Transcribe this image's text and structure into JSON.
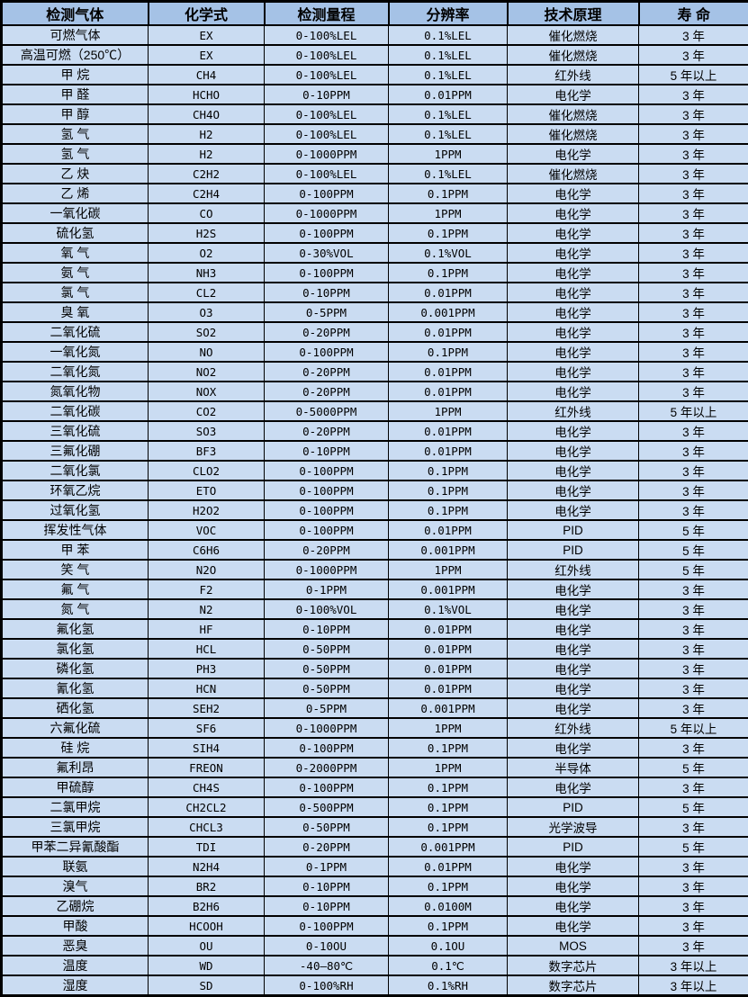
{
  "colors": {
    "header_bg": "#a5c2e6",
    "row_bg": "#cadcf2",
    "border": "#000000"
  },
  "table": {
    "headers": [
      "检测气体",
      "化学式",
      "检测量程",
      "分辨率",
      "技术原理",
      "寿 命"
    ],
    "rows": [
      [
        "可燃气体",
        "EX",
        "0-100%LEL",
        "0.1%LEL",
        "催化燃烧",
        "3 年"
      ],
      [
        "高温可燃（250℃）",
        "EX",
        "0-100%LEL",
        "0.1%LEL",
        "催化燃烧",
        "3 年"
      ],
      [
        "甲 烷",
        "CH4",
        "0-100%LEL",
        "0.1%LEL",
        "红外线",
        "5 年以上"
      ],
      [
        "甲 醛",
        "HCHO",
        "0-10PPM",
        "0.01PPM",
        "电化学",
        "3 年"
      ],
      [
        "甲 醇",
        "CH4O",
        "0-100%LEL",
        "0.1%LEL",
        "催化燃烧",
        "3 年"
      ],
      [
        "氢 气",
        "H2",
        "0-100%LEL",
        "0.1%LEL",
        "催化燃烧",
        "3 年"
      ],
      [
        "氢 气",
        "H2",
        "0-1000PPM",
        "1PPM",
        "电化学",
        "3 年"
      ],
      [
        "乙 炔",
        "C2H2",
        "0-100%LEL",
        "0.1%LEL",
        "催化燃烧",
        "3 年"
      ],
      [
        "乙 烯",
        "C2H4",
        "0-100PPM",
        "0.1PPM",
        "电化学",
        "3 年"
      ],
      [
        "一氧化碳",
        "CO",
        "0-1000PPM",
        "1PPM",
        "电化学",
        "3 年"
      ],
      [
        "硫化氢",
        "H2S",
        "0-100PPM",
        "0.1PPM",
        "电化学",
        "3 年"
      ],
      [
        "氧 气",
        "O2",
        "0-30%VOL",
        "0.1%VOL",
        "电化学",
        "3 年"
      ],
      [
        "氨 气",
        "NH3",
        "0-100PPM",
        "0.1PPM",
        "电化学",
        "3 年"
      ],
      [
        "氯 气",
        "CL2",
        "0-10PPM",
        "0.01PPM",
        "电化学",
        "3 年"
      ],
      [
        "臭 氧",
        "O3",
        "0-5PPM",
        "0.001PPM",
        "电化学",
        "3 年"
      ],
      [
        "二氧化硫",
        "SO2",
        "0-20PPM",
        "0.01PPM",
        "电化学",
        "3 年"
      ],
      [
        "一氧化氮",
        "NO",
        "0-100PPM",
        "0.1PPM",
        "电化学",
        "3 年"
      ],
      [
        "二氧化氮",
        "NO2",
        "0-20PPM",
        "0.01PPM",
        "电化学",
        "3 年"
      ],
      [
        "氮氧化物",
        "NOX",
        "0-20PPM",
        "0.01PPM",
        "电化学",
        "3 年"
      ],
      [
        "二氧化碳",
        "CO2",
        "0-5000PPM",
        "1PPM",
        "红外线",
        "5 年以上"
      ],
      [
        "三氧化硫",
        "SO3",
        "0-20PPM",
        "0.01PPM",
        "电化学",
        "3 年"
      ],
      [
        "三氟化硼",
        "BF3",
        "0-10PPM",
        "0.01PPM",
        "电化学",
        "3 年"
      ],
      [
        "二氧化氯",
        "CLO2",
        "0-100PPM",
        "0.1PPM",
        "电化学",
        "3 年"
      ],
      [
        "环氧乙烷",
        "ETO",
        "0-100PPM",
        "0.1PPM",
        "电化学",
        "3 年"
      ],
      [
        "过氧化氢",
        "H2O2",
        "0-100PPM",
        "0.1PPM",
        "电化学",
        "3 年"
      ],
      [
        "挥发性气体",
        "VOC",
        "0-100PPM",
        "0.01PPM",
        "PID",
        "5 年"
      ],
      [
        "甲 苯",
        "C6H6",
        "0-20PPM",
        "0.001PPM",
        "PID",
        "5 年"
      ],
      [
        "笑 气",
        "N2O",
        "0-1000PPM",
        "1PPM",
        "红外线",
        "5 年"
      ],
      [
        "氟 气",
        "F2",
        "0-1PPM",
        "0.001PPM",
        "电化学",
        "3 年"
      ],
      [
        "氮 气",
        "N2",
        "0-100%VOL",
        "0.1%VOL",
        "电化学",
        "3 年"
      ],
      [
        "氟化氢",
        "HF",
        "0-10PPM",
        "0.01PPM",
        "电化学",
        "3 年"
      ],
      [
        "氯化氢",
        "HCL",
        "0-50PPM",
        "0.01PPM",
        "电化学",
        "3 年"
      ],
      [
        "磷化氢",
        "PH3",
        "0-50PPM",
        "0.01PPM",
        "电化学",
        "3 年"
      ],
      [
        "氰化氢",
        "HCN",
        "0-50PPM",
        "0.01PPM",
        "电化学",
        "3 年"
      ],
      [
        "硒化氢",
        "SEH2",
        "0-5PPM",
        "0.001PPM",
        "电化学",
        "3 年"
      ],
      [
        "六氟化硫",
        "SF6",
        "0-1000PPM",
        "1PPM",
        "红外线",
        "5 年以上"
      ],
      [
        "硅 烷",
        "SIH4",
        "0-100PPM",
        "0.1PPM",
        "电化学",
        "3 年"
      ],
      [
        "氟利昂",
        "FREON",
        "0-2000PPM",
        "1PPM",
        "半导体",
        "5 年"
      ],
      [
        "甲硫醇",
        "CH4S",
        "0-100PPM",
        "0.1PPM",
        "电化学",
        "3 年"
      ],
      [
        "二氯甲烷",
        "CH2CL2",
        "0-500PPM",
        "0.1PPM",
        "PID",
        "5 年"
      ],
      [
        "三氯甲烷",
        "CHCL3",
        "0-50PPM",
        "0.1PPM",
        "光学波导",
        "3 年"
      ],
      [
        "甲苯二异氰酸酯",
        "TDI",
        "0-20PPM",
        "0.001PPM",
        "PID",
        "5 年"
      ],
      [
        "联氨",
        "N2H4",
        "0-1PPM",
        "0.01PPM",
        "电化学",
        "3 年"
      ],
      [
        "溴气",
        "BR2",
        "0-10PPM",
        "0.1PPM",
        "电化学",
        "3 年"
      ],
      [
        "乙硼烷",
        "B2H6",
        "0-10PPM",
        "0.0100M",
        "电化学",
        "3 年"
      ],
      [
        "甲酸",
        "HCOOH",
        "0-100PPM",
        "0.1PPM",
        "电化学",
        "3 年"
      ],
      [
        "恶臭",
        "OU",
        "0-10OU",
        "0.1OU",
        "MOS",
        "3 年"
      ],
      [
        "温度",
        "WD",
        "-40—80℃",
        "0.1℃",
        "数字芯片",
        "3 年以上"
      ],
      [
        "湿度",
        "SD",
        "0-100%RH",
        "0.1%RH",
        "数字芯片",
        "3 年以上"
      ]
    ]
  }
}
